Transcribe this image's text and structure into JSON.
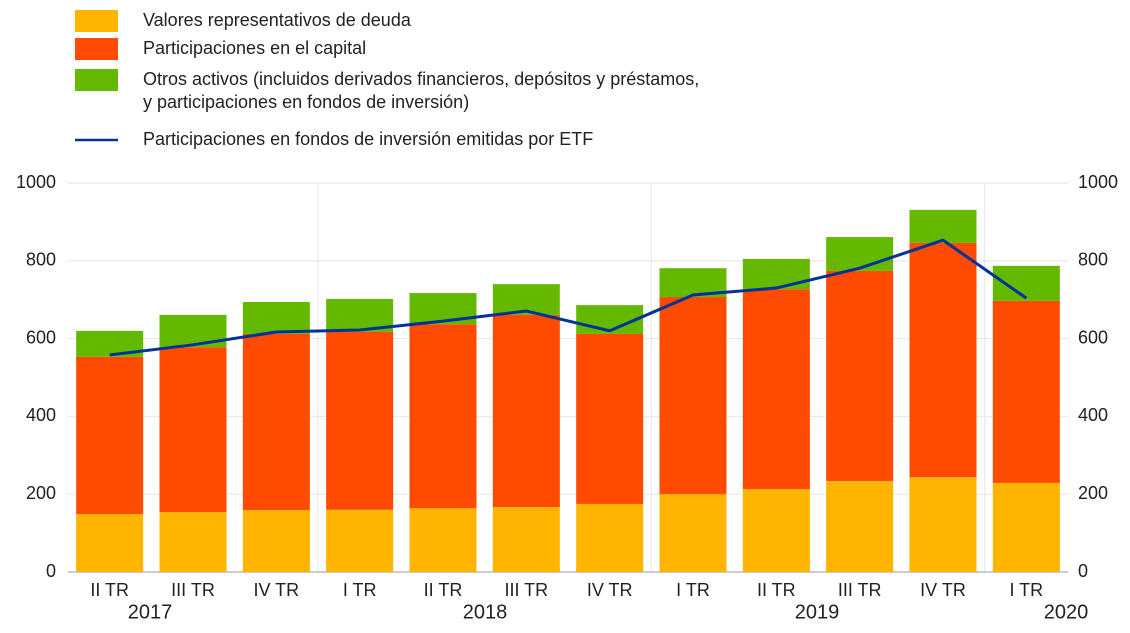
{
  "chart_data": {
    "type": "stacked_bar_line",
    "categories": [
      "II TR",
      "III TR",
      "IV TR",
      "I TR",
      "II TR",
      "III TR",
      "IV TR",
      "I TR",
      "II TR",
      "III TR",
      "IV TR",
      "I TR"
    ],
    "years": [
      "2017",
      "2018",
      "2019",
      "2020"
    ],
    "series": [
      {
        "name": "Valores representativos de deuda",
        "color": "#ffb400",
        "values": [
          149,
          154,
          159,
          160,
          164,
          167,
          175,
          200,
          213,
          234,
          244,
          229
        ]
      },
      {
        "name": "Participaciones en el capital",
        "color": "#ff4b00",
        "values": [
          404,
          424,
          453,
          457,
          473,
          494,
          437,
          507,
          514,
          540,
          602,
          468
        ]
      },
      {
        "name": "Otros activos (incluidos derivados financieros, depósitos y préstamos, y participaciones en fondos de inversión)",
        "color": "#65b800",
        "values": [
          67,
          83,
          82,
          85,
          80,
          79,
          74,
          74,
          78,
          87,
          85,
          90
        ]
      },
      {
        "name": "Participaciones en fondos de inversión emitidas por ETF",
        "color": "#003299",
        "type": "line",
        "axis": "y2",
        "values": [
          558,
          584,
          617,
          622,
          645,
          671,
          620,
          712,
          730,
          781,
          853,
          704
        ]
      }
    ],
    "ylim": [
      0,
      1000
    ],
    "yticks": [
      0,
      200,
      400,
      600,
      800,
      1000
    ],
    "y2lim": [
      0,
      1000
    ],
    "y2ticks": [
      0,
      200,
      400,
      600,
      800,
      1000
    ],
    "grid": true
  }
}
